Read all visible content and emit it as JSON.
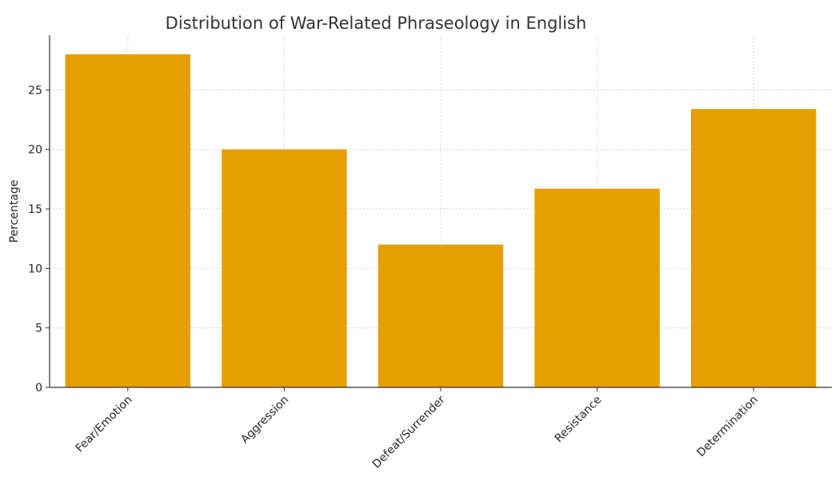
{
  "chart_data": {
    "type": "bar",
    "title": "Distribution of War-Related Phraseology in English",
    "xlabel": "",
    "ylabel": "Percentage",
    "categories": [
      "Fear/Emotion",
      "Aggression",
      "Defeat/Surrender",
      "Resistance",
      "Determination"
    ],
    "values": [
      28.0,
      20.0,
      12.0,
      16.7,
      23.4
    ],
    "ylim": [
      0,
      29.6
    ],
    "yticks": [
      0,
      5,
      10,
      15,
      20,
      25
    ],
    "grid": true,
    "legend": "none",
    "bar_color": "#E69F00"
  }
}
